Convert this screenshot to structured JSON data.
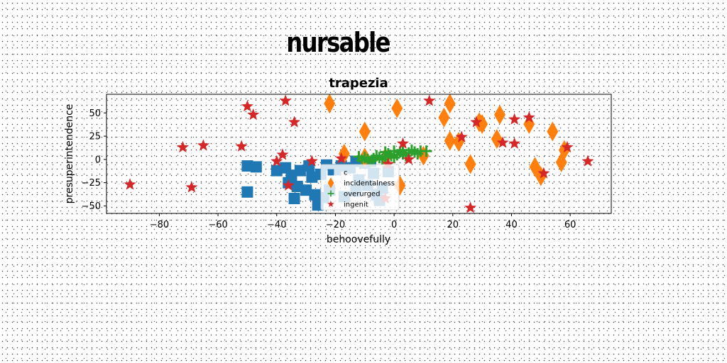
{
  "figure": {
    "title": "nursable"
  },
  "chart_data": {
    "type": "scatter",
    "title": "trapezia",
    "xlabel": "behoovefully",
    "ylabel": "presuperintendence",
    "xlim": [
      -98,
      74
    ],
    "ylim": [
      -58,
      70
    ],
    "xticks": [
      -80,
      -60,
      -40,
      -20,
      0,
      20,
      40,
      60
    ],
    "yticks": [
      -50,
      -25,
      0,
      25,
      50
    ],
    "grid": false,
    "legend_position": "center",
    "colors": {
      "blue": "#1f77b4",
      "orange": "#ff7f0e",
      "green": "#2ca02c",
      "red": "#d62728"
    },
    "series": [
      {
        "name": "c",
        "marker": "square",
        "color": "#1f77b4",
        "points": [
          [
            -50,
            -7
          ],
          [
            -47,
            -8
          ],
          [
            -40,
            -12
          ],
          [
            -37,
            -9
          ],
          [
            -35,
            -17
          ],
          [
            -32,
            -12
          ],
          [
            -29,
            -7
          ],
          [
            -28,
            -19
          ],
          [
            -25,
            -16
          ],
          [
            -23,
            -6
          ],
          [
            -20,
            -11
          ],
          [
            -18,
            -7
          ],
          [
            -15,
            -9
          ],
          [
            -13,
            -2
          ],
          [
            -10,
            -4
          ],
          [
            -8,
            -2
          ],
          [
            -36,
            -25
          ],
          [
            -33,
            -29
          ],
          [
            -30,
            -33
          ],
          [
            -27,
            -38
          ],
          [
            -24,
            -41
          ],
          [
            -26,
            -49
          ],
          [
            -34,
            -42
          ],
          [
            -50,
            -35
          ],
          [
            -22,
            -33
          ],
          [
            -6,
            -38
          ],
          [
            -4,
            -31
          ],
          [
            -13,
            -34
          ],
          [
            -9,
            -28
          ],
          [
            -17,
            -40
          ],
          [
            -12,
            -22
          ],
          [
            -7,
            -15
          ],
          [
            -2,
            -13
          ],
          [
            -5,
            -44
          ]
        ]
      },
      {
        "name": "incidentalness",
        "marker": "diamond",
        "color": "#ff7f0e",
        "points": [
          [
            -22,
            60
          ],
          [
            1,
            55
          ],
          [
            -17,
            6
          ],
          [
            -10,
            30
          ],
          [
            -10,
            2
          ],
          [
            -3,
            2
          ],
          [
            10,
            4
          ],
          [
            17,
            45
          ],
          [
            19,
            60
          ],
          [
            19,
            20
          ],
          [
            22,
            19
          ],
          [
            26,
            -5
          ],
          [
            29,
            40
          ],
          [
            30,
            38
          ],
          [
            36,
            48
          ],
          [
            35,
            22
          ],
          [
            46,
            38
          ],
          [
            48,
            -8
          ],
          [
            50,
            -18
          ],
          [
            54,
            30
          ],
          [
            57,
            -3
          ],
          [
            58,
            10
          ],
          [
            2,
            -28
          ]
        ]
      },
      {
        "name": "overurged",
        "marker": "plus",
        "color": "#2ca02c",
        "points": [
          [
            -11,
            -1
          ],
          [
            -9,
            0
          ],
          [
            -7,
            1
          ],
          [
            -5,
            2
          ],
          [
            -3,
            3
          ],
          [
            -1,
            4
          ],
          [
            1,
            5
          ],
          [
            3,
            6
          ],
          [
            5,
            7
          ],
          [
            7,
            8
          ],
          [
            9,
            9
          ],
          [
            11,
            9
          ],
          [
            -10,
            2
          ],
          [
            -6,
            4
          ],
          [
            -2,
            6
          ],
          [
            2,
            8
          ],
          [
            6,
            10
          ],
          [
            -8,
            -2
          ],
          [
            -4,
            0
          ],
          [
            0,
            2
          ],
          [
            4,
            4
          ],
          [
            8,
            6
          ],
          [
            -12,
            3
          ],
          [
            -3,
            8
          ],
          [
            0,
            9
          ],
          [
            3,
            10
          ]
        ]
      },
      {
        "name": "ingenit",
        "marker": "star",
        "color": "#d62728",
        "points": [
          [
            -90,
            -27
          ],
          [
            -72,
            13
          ],
          [
            -69,
            -30
          ],
          [
            -65,
            15
          ],
          [
            -52,
            14
          ],
          [
            -50,
            57
          ],
          [
            -48,
            48
          ],
          [
            -38,
            5
          ],
          [
            -37,
            63
          ],
          [
            -34,
            40
          ],
          [
            -36,
            -28
          ],
          [
            -40,
            -2
          ],
          [
            -28,
            -2
          ],
          [
            -18,
            1
          ],
          [
            -2,
            -5
          ],
          [
            -3,
            -42
          ],
          [
            3,
            17
          ],
          [
            5,
            0
          ],
          [
            12,
            63
          ],
          [
            23,
            24
          ],
          [
            26,
            -52
          ],
          [
            28,
            40
          ],
          [
            37,
            18
          ],
          [
            41,
            43
          ],
          [
            41,
            17
          ],
          [
            46,
            45
          ],
          [
            51,
            -15
          ],
          [
            59,
            13
          ],
          [
            66,
            -2
          ]
        ]
      }
    ]
  }
}
